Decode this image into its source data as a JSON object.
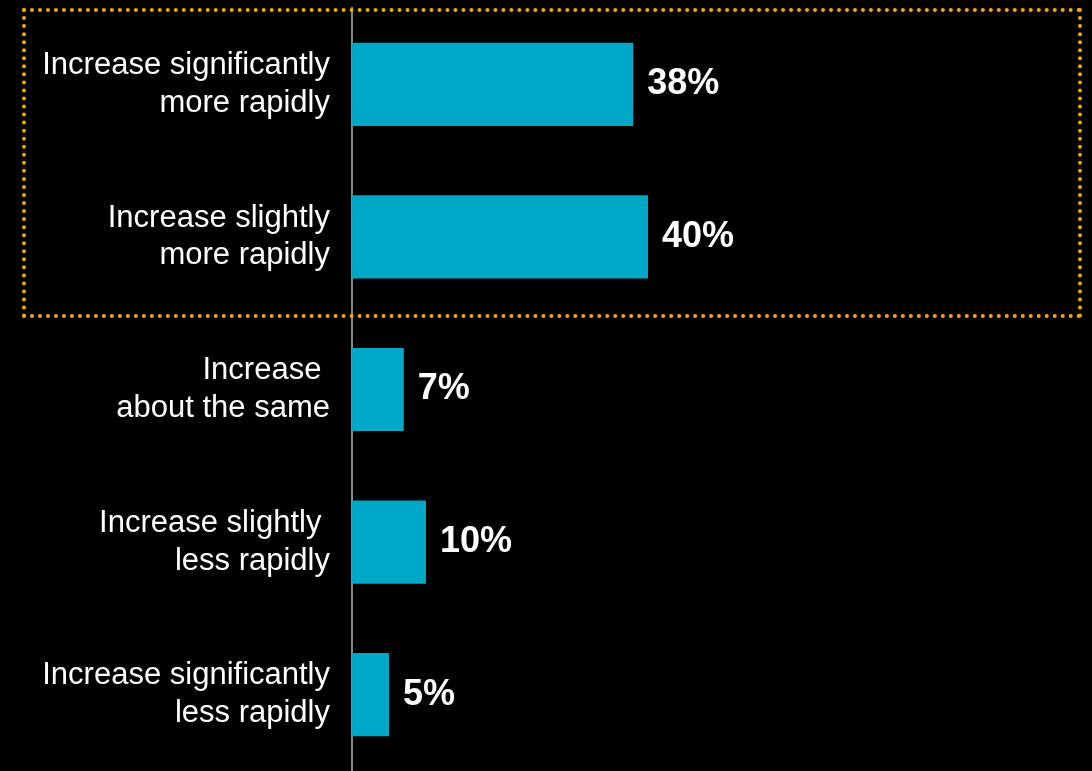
{
  "chart_data": {
    "type": "bar",
    "orientation": "horizontal",
    "categories": [
      "Increase significantly\nmore rapidly",
      "Increase slightly\nmore rapidly",
      "Increase \nabout the same",
      "Increase slightly \nless rapidly",
      "Increase significantly\nless rapidly"
    ],
    "values": [
      38,
      40,
      7,
      10,
      5
    ],
    "value_labels": [
      "38%",
      "40%",
      "7%",
      "10%",
      "5%"
    ],
    "color": "#00a8c8",
    "xlim": [
      0,
      100
    ],
    "legend": false
  }
}
